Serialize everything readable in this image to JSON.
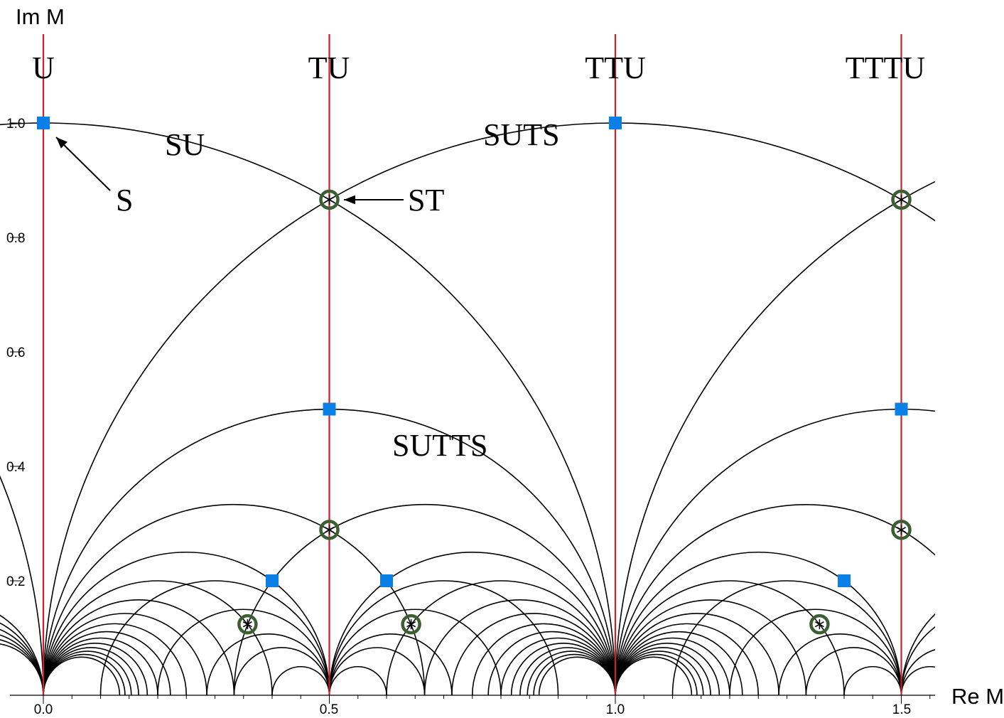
{
  "axes": {
    "x_label": "Re M",
    "y_label": "Im M",
    "x_ticks": [
      "0.0",
      "0.5",
      "1.0",
      "1.5"
    ],
    "y_ticks": [
      "0.2",
      "0.4",
      "0.6",
      "0.8",
      "1.0"
    ]
  },
  "vertical_line_labels": [
    "U",
    "TU",
    "TTU",
    "TTTU"
  ],
  "region_labels": [
    {
      "text": "SU",
      "re": 0.25,
      "im": 0.965
    },
    {
      "text": "SUTS",
      "re": 0.775,
      "im": 0.975
    },
    {
      "text": "SUTTS",
      "re": 0.7,
      "im": 0.415
    }
  ],
  "annotations": [
    {
      "text": "S",
      "re": 0.14,
      "im": 0.875,
      "points_to": [
        0.0,
        1.0
      ]
    },
    {
      "text": "ST",
      "re": 0.67,
      "im": 0.865,
      "points_to": [
        0.5,
        0.866
      ]
    }
  ],
  "colors": {
    "curves": "#000000",
    "vertical_lines": "#cc1f2a",
    "square_markers": "#0a7fe6",
    "circle_markers": "#3b5e33"
  },
  "marker_legend": {
    "square": "blue square fixed point",
    "circle": "green circle with asterisk fixed point"
  },
  "chart_data": {
    "type": "line",
    "xlim": [
      0.0,
      1.57
    ],
    "ylim": [
      0.0,
      1.1
    ],
    "x_ticks": [
      0.0,
      0.5,
      1.0,
      1.5
    ],
    "y_ticks": [
      0.2,
      0.4,
      0.6,
      0.8,
      1.0
    ],
    "vertical_lines_re": [
      0.0,
      0.5,
      1.0,
      1.5
    ],
    "square_points": [
      [
        0.0,
        1.0
      ],
      [
        1.0,
        1.0
      ],
      [
        0.5,
        0.5
      ],
      [
        1.5,
        0.5
      ],
      [
        0.4,
        0.2
      ],
      [
        0.6,
        0.2
      ],
      [
        1.4,
        0.2
      ]
    ],
    "circle_points": [
      [
        0.5,
        0.866
      ],
      [
        1.5,
        0.866
      ],
      [
        0.5,
        0.289
      ],
      [
        1.5,
        0.289
      ],
      [
        0.357,
        0.124
      ],
      [
        0.643,
        0.124
      ],
      [
        1.357,
        0.124
      ]
    ],
    "semicircles_center_radius": [
      [
        -1.0,
        1.0
      ],
      [
        1.0,
        1.0
      ],
      [
        0.0,
        1.0
      ],
      [
        2.0,
        1.0
      ],
      [
        0.5,
        0.5
      ],
      [
        1.5,
        0.5
      ],
      [
        0.3333,
        0.3333
      ],
      [
        0.6667,
        0.3333
      ],
      [
        1.3333,
        0.3333
      ],
      [
        0.25,
        0.25
      ],
      [
        0.75,
        0.25
      ],
      [
        1.25,
        0.25
      ],
      [
        0.2,
        0.2
      ],
      [
        0.8,
        0.2
      ],
      [
        1.2,
        0.2
      ],
      [
        0.1667,
        0.1667
      ],
      [
        0.8333,
        0.1667
      ],
      [
        1.1667,
        0.1667
      ],
      [
        0.1429,
        0.1429
      ],
      [
        0.8571,
        0.1429
      ],
      [
        1.1429,
        0.1429
      ],
      [
        0.125,
        0.125
      ],
      [
        0.875,
        0.125
      ],
      [
        1.125,
        0.125
      ],
      [
        0.1111,
        0.1111
      ],
      [
        0.8889,
        0.1111
      ],
      [
        1.1111,
        0.1111
      ],
      [
        0.1,
        0.1
      ],
      [
        0.9,
        0.1
      ],
      [
        1.1,
        0.1
      ],
      [
        0.0909,
        0.0909
      ],
      [
        0.9091,
        0.0909
      ],
      [
        1.0909,
        0.0909
      ],
      [
        0.0833,
        0.0833
      ],
      [
        0.9167,
        0.0833
      ],
      [
        1.0833,
        0.0833
      ],
      [
        0.0769,
        0.0769
      ],
      [
        0.9231,
        0.0769
      ],
      [
        1.0769,
        0.0769
      ],
      [
        0.0714,
        0.0714
      ],
      [
        0.9286,
        0.0714
      ],
      [
        1.0714,
        0.0714
      ],
      [
        0.0667,
        0.0667
      ],
      [
        0.9333,
        0.0667
      ],
      [
        1.0667,
        0.0667
      ],
      [
        -0.1667,
        0.1667
      ],
      [
        -0.1429,
        0.1429
      ],
      [
        -0.125,
        0.125
      ],
      [
        -0.1111,
        0.1111
      ],
      [
        -0.1,
        0.1
      ],
      [
        -0.0909,
        0.0909
      ],
      [
        0.4167,
        0.0833
      ],
      [
        0.5833,
        0.0833
      ],
      [
        1.4167,
        0.0833
      ],
      [
        1.5833,
        0.0833
      ],
      [
        0.35,
        0.15
      ],
      [
        0.65,
        0.15
      ],
      [
        1.35,
        0.15
      ],
      [
        1.65,
        0.15
      ],
      [
        0.3929,
        0.1071
      ],
      [
        0.6071,
        0.1071
      ],
      [
        1.3929,
        0.1071
      ],
      [
        0.3,
        0.2
      ],
      [
        0.7,
        0.2
      ],
      [
        1.3,
        0.2
      ],
      [
        1.7,
        0.2
      ],
      [
        0.45,
        0.05
      ],
      [
        0.55,
        0.05
      ],
      [
        1.45,
        0.05
      ],
      [
        1.55,
        0.05
      ]
    ]
  }
}
